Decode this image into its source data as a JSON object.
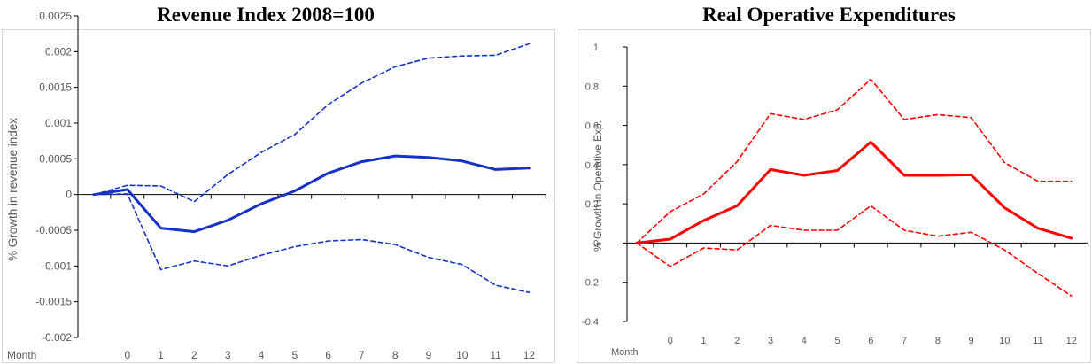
{
  "chart_data": [
    {
      "type": "line",
      "title": "Revenue Index 2008=100",
      "ylabel": "% Growth in revenue index",
      "x_axis_name": "Month",
      "categories": [
        "",
        "0",
        "1",
        "2",
        "3",
        "4",
        "5",
        "6",
        "7",
        "8",
        "9",
        "10",
        "11",
        "12"
      ],
      "ylim": [
        -0.002,
        0.0025
      ],
      "yticks": [
        -0.002,
        -0.0015,
        -0.001,
        -0.0005,
        0,
        0.0005,
        0.001,
        0.0015,
        0.002,
        0.0025
      ],
      "ytick_labels": [
        "-0.002",
        "-0.0015",
        "-0.001",
        "-0.0005",
        "0",
        "0.0005",
        "0.001",
        "0.0015",
        "0.002",
        "0.0025"
      ],
      "grid": false,
      "series_color": "#1432c8",
      "series": [
        {
          "style": "solid",
          "values": [
            0,
            7e-05,
            -0.00047,
            -0.00052,
            -0.00036,
            -0.00013,
            5e-05,
            0.0003,
            0.00046,
            0.00054,
            0.00052,
            0.00047,
            0.00035,
            0.00037
          ]
        },
        {
          "style": "dashed",
          "values": [
            0,
            0.00013,
            0.00012,
            -0.0001,
            0.00028,
            0.00059,
            0.00084,
            0.00126,
            0.00156,
            0.00179,
            0.00191,
            0.00194,
            0.00195,
            0.00211
          ]
        },
        {
          "style": "dashed",
          "values": [
            0,
            1e-05,
            -0.00105,
            -0.00093,
            -0.001,
            -0.00085,
            -0.00073,
            -0.00065,
            -0.00063,
            -0.0007,
            -0.00088,
            -0.00098,
            -0.00127,
            -0.00137
          ]
        }
      ]
    },
    {
      "type": "line",
      "title": "Real Operative Expenditures",
      "ylabel": "% Growth in Operative Exp.",
      "x_axis_name": "Month",
      "categories": [
        "",
        "0",
        "1",
        "2",
        "3",
        "4",
        "5",
        "6",
        "7",
        "8",
        "9",
        "10",
        "11",
        "12"
      ],
      "ylim": [
        -0.4,
        1
      ],
      "yticks": [
        -0.4,
        -0.2,
        0,
        0.2,
        0.4,
        0.6,
        0.8,
        1
      ],
      "ytick_labels": [
        "-0.4",
        "-0.2",
        "0",
        "0.2",
        "0.4",
        "0.6",
        "0.8",
        "1"
      ],
      "grid": false,
      "series_color": "#ff0000",
      "series": [
        {
          "style": "solid",
          "values": [
            0,
            0.02,
            0.115,
            0.19,
            0.375,
            0.345,
            0.37,
            0.515,
            0.345,
            0.345,
            0.348,
            0.18,
            0.075,
            0.025
          ]
        },
        {
          "style": "dashed",
          "values": [
            0,
            0.16,
            0.25,
            0.415,
            0.66,
            0.63,
            0.68,
            0.835,
            0.63,
            0.655,
            0.64,
            0.41,
            0.315,
            0.315
          ]
        },
        {
          "style": "dashed",
          "values": [
            0,
            -0.12,
            -0.025,
            -0.035,
            0.09,
            0.065,
            0.065,
            0.19,
            0.065,
            0.035,
            0.055,
            -0.035,
            -0.155,
            -0.27
          ]
        }
      ]
    }
  ]
}
